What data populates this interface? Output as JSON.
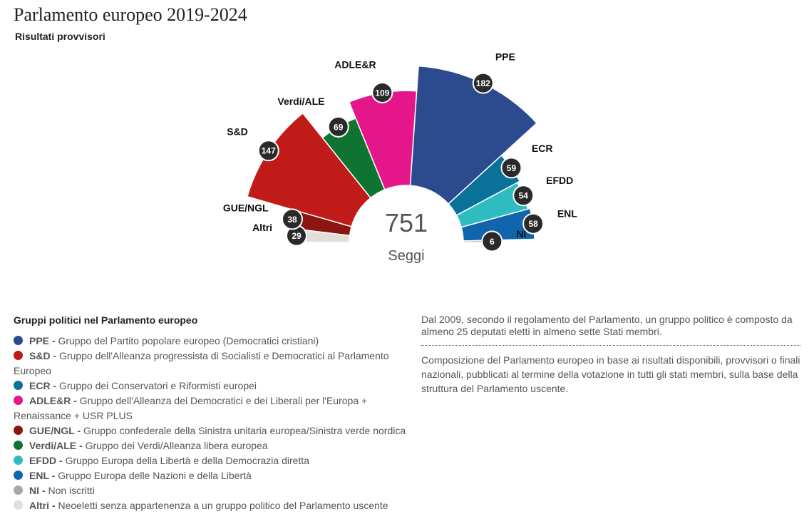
{
  "header": {
    "title": "Parlamento europeo 2019-2024",
    "subtitle": "Risultati provvisori"
  },
  "chart_data": {
    "type": "pie",
    "total": 751,
    "center_label": "Seggi",
    "slices": [
      {
        "label": "Altri",
        "value": 29,
        "color": "#e2dfdb"
      },
      {
        "label": "GUE/NGL",
        "value": 38,
        "color": "#8b1510"
      },
      {
        "label": "S&D",
        "value": 147,
        "color": "#c01b19"
      },
      {
        "label": "Verdi/ALE",
        "value": 69,
        "color": "#0f7431"
      },
      {
        "label": "ADLE&R",
        "value": 109,
        "color": "#e5168a"
      },
      {
        "label": "PPE",
        "value": 182,
        "color": "#2c4a8e"
      },
      {
        "label": "ECR",
        "value": 59,
        "color": "#0a7198"
      },
      {
        "label": "EFDD",
        "value": 54,
        "color": "#2ebcc0"
      },
      {
        "label": "ENL",
        "value": 58,
        "color": "#1165ad"
      },
      {
        "label": "NI",
        "value": 6,
        "color": "#a7a7a7"
      }
    ]
  },
  "legend": {
    "title": "Gruppi politici nel Parlamento europeo",
    "items": [
      {
        "abbr": "PPE",
        "text": "Gruppo del Partito popolare europeo (Democratici cristiani)",
        "color": "#2c4a8e"
      },
      {
        "abbr": "S&D",
        "text": "Gruppo dell'Alleanza progressista di Socialisti e Democratici al Parlamento Europeo",
        "color": "#c01b19"
      },
      {
        "abbr": "ECR",
        "text": "Gruppo dei Conservatori e Riformisti europei",
        "color": "#0a7198"
      },
      {
        "abbr": "ADLE&R",
        "text": "Gruppo dell'Alleanza dei Democratici e dei Liberali per l'Europa + Renaissance + USR PLUS",
        "color": "#e5168a"
      },
      {
        "abbr": "GUE/NGL",
        "text": "Gruppo confederale della Sinistra unitaria europea/Sinistra verde nordica",
        "color": "#8b1510"
      },
      {
        "abbr": "Verdi/ALE",
        "text": "Gruppo dei Verdi/Alleanza libera europea",
        "color": "#0f7431"
      },
      {
        "abbr": "EFDD",
        "text": "Gruppo Europa della Libertà e della Democrazia diretta",
        "color": "#2ebcc0"
      },
      {
        "abbr": "ENL",
        "text": "Gruppo Europa delle Nazioni e della Libertà",
        "color": "#1165ad"
      },
      {
        "abbr": "NI",
        "text": "Non iscritti",
        "color": "#a7a7a7"
      },
      {
        "abbr": "Altri",
        "text": "Neoeletti senza appartenenza a un gruppo politico del Parlamento uscente",
        "color": "#e2dfdb"
      }
    ]
  },
  "notes": {
    "note1": "Dal 2009, secondo il regolamento del Parlamento, un gruppo politico è composto da almeno 25 deputati eletti in almeno sette Stati membri.",
    "note2": "Composizione del Parlamento europeo in base ai risultati disponibili, provvisori o finali nazionali, pubblicati al termine della votazione in tutti gli stati membri, sulla base della struttura del Parlamento uscente."
  }
}
